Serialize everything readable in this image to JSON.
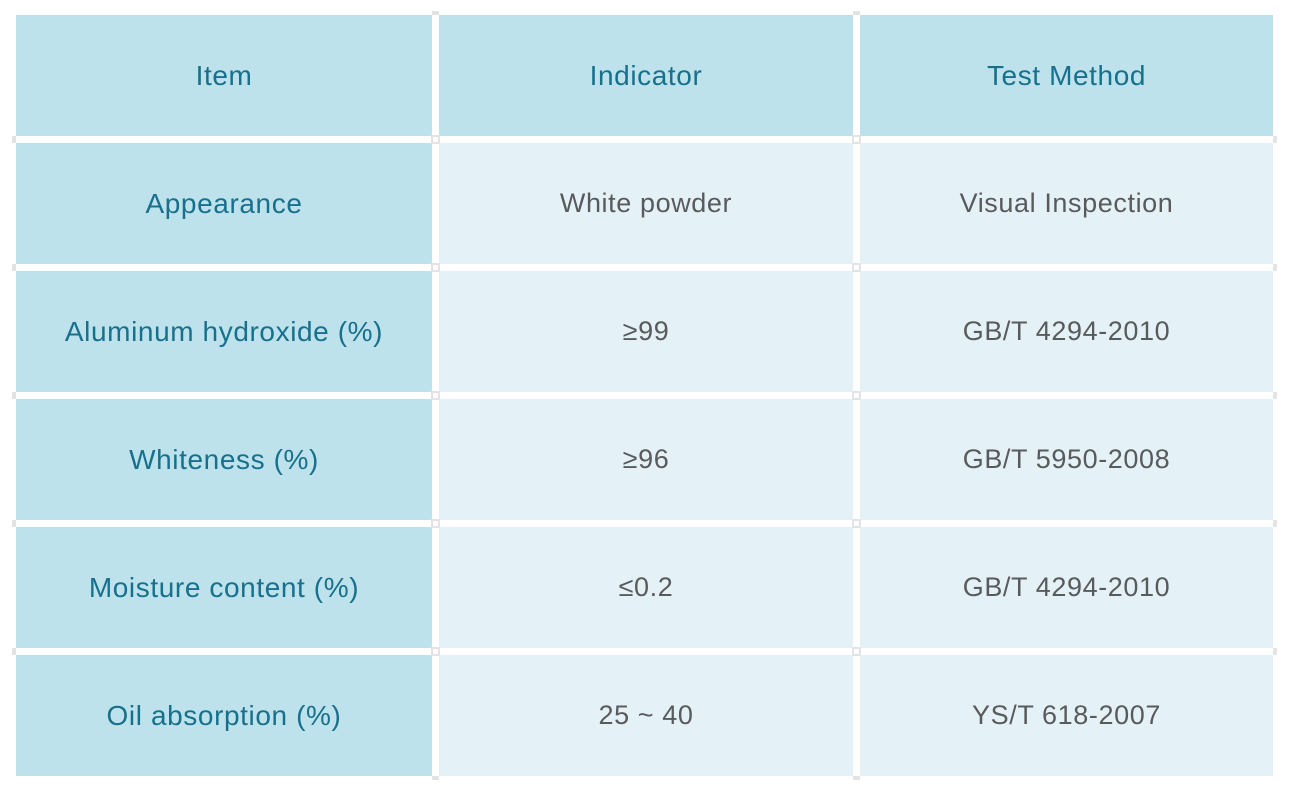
{
  "chart_data": {
    "type": "table",
    "columns": [
      "Item",
      "Indicator",
      "Test Method"
    ],
    "rows": [
      [
        "Appearance",
        "White powder",
        "Visual Inspection"
      ],
      [
        "Aluminum hydroxide (%)",
        "≥99",
        "GB/T 4294-2010"
      ],
      [
        "Whiteness (%)",
        "≥96",
        "GB/T 5950-2008"
      ],
      [
        "Moisture content (%)",
        "≤0.2",
        "GB/T 4294-2010"
      ],
      [
        "Oil absorption (%)",
        "25 ~ 40",
        "YS/T 618-2007"
      ]
    ]
  },
  "colors": {
    "header_cell_bg": "#bee2ec",
    "data_cell_bg": "#e4f2f8",
    "header_text": "#17708c",
    "data_text": "#595a5c",
    "page_bg": "#ffffff",
    "grid_handle": "#e3e3e3"
  }
}
